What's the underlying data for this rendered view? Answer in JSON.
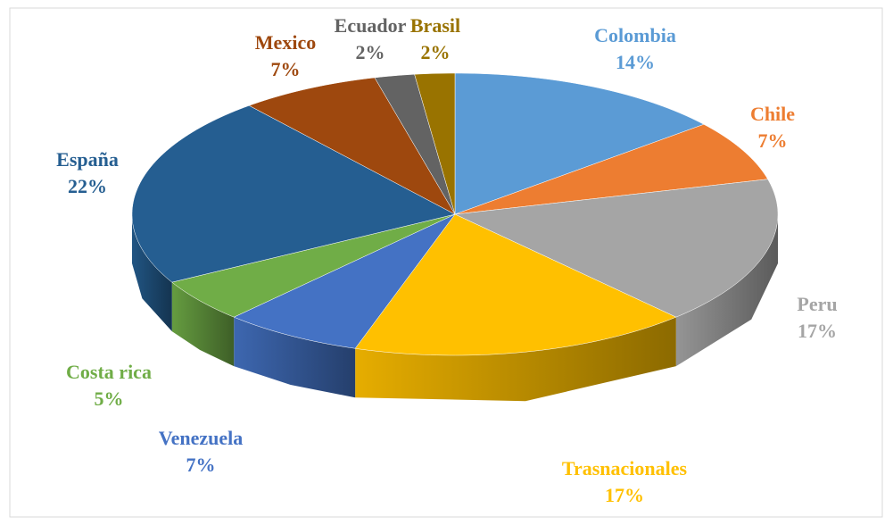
{
  "chart_data": {
    "type": "pie",
    "categories": [
      "Colombia",
      "Chile",
      "Peru",
      "Trasnacionales",
      "Venezuela",
      "Costa rica",
      "España",
      "Mexico",
      "Ecuador",
      "Brasil"
    ],
    "values": [
      14,
      7,
      17,
      17,
      7,
      5,
      22,
      7,
      2,
      2
    ],
    "value_labels": [
      "14%",
      "7%",
      "17%",
      "17%",
      "7%",
      "5%",
      "22%",
      "7%",
      "2%",
      "2%"
    ],
    "colors": [
      "#5b9bd5",
      "#ed7d31",
      "#a5a5a5",
      "#ffc000",
      "#4472c4",
      "#70ad47",
      "#255e91",
      "#9e480e",
      "#636363",
      "#997300"
    ]
  }
}
